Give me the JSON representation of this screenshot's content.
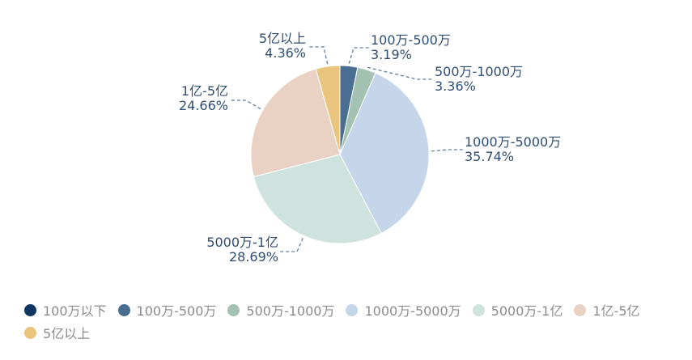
{
  "chart_data": {
    "type": "pie",
    "title": "",
    "series": [
      {
        "name": "100万以下",
        "value": 0.0,
        "label": "",
        "color": "#0f3660"
      },
      {
        "name": "100万-500万",
        "value": 3.19,
        "label": "3.19%",
        "color": "#4a6e91"
      },
      {
        "name": "500万-1000万",
        "value": 3.36,
        "label": "3.36%",
        "color": "#a3c2b2"
      },
      {
        "name": "1000万-5000万",
        "value": 35.74,
        "label": "35.74%",
        "color": "#c5d6eb"
      },
      {
        "name": "5000万-1亿",
        "value": 28.69,
        "label": "28.69%",
        "color": "#cfe3de"
      },
      {
        "name": "1亿-5亿",
        "value": 24.66,
        "label": "24.66%",
        "color": "#e9d1c3"
      },
      {
        "name": "5亿以上",
        "value": 4.36,
        "label": "4.36%",
        "color": "#e8c47c"
      }
    ],
    "legend_position": "bottom-left"
  }
}
